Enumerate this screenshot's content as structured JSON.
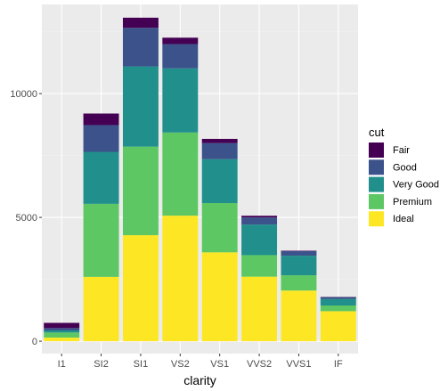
{
  "chart_data": {
    "type": "bar",
    "stacked": true,
    "title": "",
    "xlabel": "clarity",
    "ylabel": "",
    "categories": [
      "I1",
      "SI2",
      "SI1",
      "VS2",
      "VS1",
      "VVS2",
      "VVS1",
      "IF"
    ],
    "ylim": [
      -500,
      13600
    ],
    "yticks": [
      0,
      5000,
      10000
    ],
    "grid": true,
    "legend": {
      "title": "cut",
      "position": "right"
    },
    "series": [
      {
        "name": "Fair",
        "color": "#440154",
        "values": [
          210,
          466,
          408,
          261,
          170,
          69,
          17,
          9
        ]
      },
      {
        "name": "Good",
        "color": "#3B528B",
        "values": [
          96,
          1081,
          1560,
          978,
          648,
          286,
          186,
          71
        ]
      },
      {
        "name": "Very Good",
        "color": "#21908C",
        "values": [
          84,
          2100,
          3240,
          2591,
          1775,
          1235,
          789,
          268
        ]
      },
      {
        "name": "Premium",
        "color": "#5DC863",
        "values": [
          205,
          2949,
          3575,
          3357,
          1989,
          870,
          616,
          230
        ]
      },
      {
        "name": "Ideal",
        "color": "#FDE725",
        "values": [
          146,
          2598,
          4282,
          5071,
          3589,
          2606,
          2047,
          1212
        ]
      }
    ]
  },
  "colors": {
    "panel_background": "#EBEBEB",
    "grid_major": "#FFFFFF",
    "grid_minor": "#F2F2F2"
  }
}
